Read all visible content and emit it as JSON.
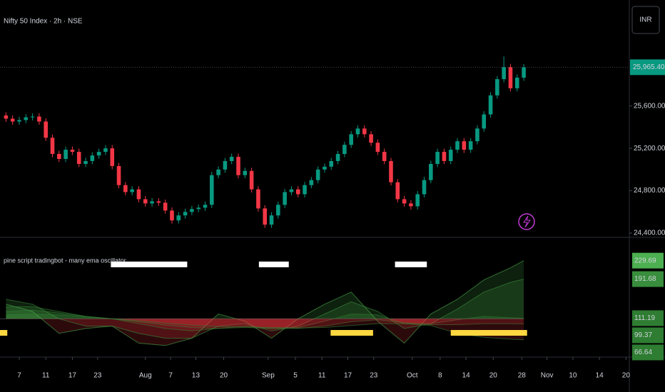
{
  "chart_data": [
    {
      "type": "candlestick",
      "title": "Nifty 50 Index · 2h · NSE",
      "currency": "INR",
      "x": [
        -2,
        -1,
        0,
        1,
        2,
        3,
        4,
        5,
        6,
        7,
        8,
        9,
        10,
        11,
        12,
        13,
        14,
        15,
        16,
        17,
        18,
        19,
        20,
        21,
        22,
        23,
        24,
        25,
        26,
        27,
        28,
        29,
        30,
        31,
        32,
        33,
        34,
        35,
        36,
        37,
        38,
        39,
        40,
        41,
        42,
        43,
        44,
        45,
        46,
        47,
        48,
        49,
        50,
        51,
        52,
        53,
        54,
        55,
        56,
        57,
        58,
        59,
        60,
        61,
        62,
        63,
        64,
        65,
        66,
        67,
        68,
        69,
        70,
        71,
        72,
        73,
        74,
        75,
        76
      ],
      "open": [
        25510,
        25480,
        25453,
        25467,
        25493,
        25500,
        25453,
        25300,
        25147,
        25100,
        25187,
        25167,
        25053,
        25080,
        25133,
        25167,
        25200,
        25033,
        24853,
        24787,
        24813,
        24720,
        24680,
        24700,
        24687,
        24613,
        24520,
        24567,
        24600,
        24627,
        24640,
        24667,
        24947,
        25000,
        25080,
        25120,
        24947,
        24987,
        24813,
        24633,
        24480,
        24567,
        24667,
        24787,
        24813,
        24767,
        24853,
        24900,
        25000,
        25027,
        25080,
        25147,
        25233,
        25333,
        25387,
        25333,
        25253,
        25167,
        25080,
        24880,
        24720,
        24680,
        24653,
        24767,
        24900,
        25053,
        25167,
        25080,
        25187,
        25267,
        25187,
        25267,
        25387,
        25520,
        25700,
        25853,
        25967,
        25767,
        25867
      ],
      "high": [
        25540,
        25510,
        25497,
        25523,
        25530,
        25530,
        25483,
        25330,
        25177,
        25217,
        25217,
        25197,
        25110,
        25163,
        25197,
        25230,
        25230,
        25063,
        24883,
        24843,
        24843,
        24750,
        24730,
        24730,
        24717,
        24643,
        24597,
        24630,
        24657,
        24670,
        24697,
        24977,
        25030,
        25110,
        25150,
        25150,
        25017,
        25017,
        24843,
        24663,
        24597,
        24697,
        24817,
        24843,
        24843,
        24883,
        24930,
        25030,
        25057,
        25110,
        25177,
        25263,
        25363,
        25417,
        25417,
        25363,
        25283,
        25197,
        25110,
        24910,
        24750,
        24710,
        24797,
        24930,
        25083,
        25197,
        25197,
        25217,
        25297,
        25297,
        25297,
        25417,
        25550,
        25730,
        25883,
        26067,
        25997,
        25897,
        25995
      ],
      "low": [
        25450,
        25423,
        25423,
        25437,
        25463,
        25423,
        25270,
        25117,
        25070,
        25070,
        25137,
        25023,
        25023,
        25050,
        25103,
        25137,
        25003,
        24823,
        24757,
        24757,
        24690,
        24650,
        24650,
        24657,
        24583,
        24490,
        24490,
        24537,
        24570,
        24597,
        24610,
        24637,
        24917,
        24970,
        25050,
        24917,
        24917,
        24783,
        24603,
        24450,
        24450,
        24537,
        24637,
        24757,
        24737,
        24737,
        24823,
        24870,
        24970,
        24997,
        25050,
        25117,
        25203,
        25303,
        25303,
        25223,
        25137,
        25050,
        24850,
        24690,
        24650,
        24623,
        24623,
        24737,
        24870,
        25023,
        25050,
        25050,
        25157,
        25157,
        25157,
        25237,
        25357,
        25490,
        25670,
        25823,
        25737,
        25737,
        25837
      ],
      "close": [
        25480,
        25453,
        25467,
        25493,
        25500,
        25453,
        25300,
        25147,
        25100,
        25187,
        25167,
        25053,
        25080,
        25133,
        25167,
        25200,
        25033,
        24853,
        24787,
        24813,
        24720,
        24680,
        24700,
        24687,
        24613,
        24520,
        24567,
        24600,
        24627,
        24640,
        24667,
        24947,
        25000,
        25080,
        25120,
        24947,
        24987,
        24813,
        24633,
        24480,
        24567,
        24667,
        24787,
        24813,
        24767,
        24853,
        24900,
        25000,
        25027,
        25080,
        25147,
        25233,
        25333,
        25387,
        25333,
        25253,
        25167,
        25080,
        24880,
        24720,
        24680,
        24653,
        24767,
        24900,
        25053,
        25167,
        25080,
        25187,
        25267,
        25187,
        25267,
        25387,
        25520,
        25700,
        25853,
        25967,
        25767,
        25867,
        25965.4
      ],
      "last_price_label": "25,965.40",
      "up_color": "#089981",
      "down_color": "#f23645",
      "xlim": [
        -2.9,
        91.9
      ],
      "ylim": [
        24360,
        26600
      ],
      "yticks": [
        {
          "value": 24400,
          "label": "24,400.00"
        },
        {
          "value": 24800,
          "label": "24,800.00"
        },
        {
          "value": 25200,
          "label": "25,200.00"
        },
        {
          "value": 25600,
          "label": "25,600.00"
        }
      ],
      "xticks": [
        {
          "value": 0,
          "label": "7"
        },
        {
          "value": 4,
          "label": "11"
        },
        {
          "value": 8,
          "label": "17"
        },
        {
          "value": 11.8,
          "label": "23"
        },
        {
          "value": 19,
          "label": "Aug"
        },
        {
          "value": 22.8,
          "label": "7"
        },
        {
          "value": 26.6,
          "label": "13"
        },
        {
          "value": 30.8,
          "label": "20"
        },
        {
          "value": 37.5,
          "label": "Sep"
        },
        {
          "value": 41.6,
          "label": "5"
        },
        {
          "value": 45.6,
          "label": "11"
        },
        {
          "value": 49.5,
          "label": "17"
        },
        {
          "value": 53.4,
          "label": "23"
        },
        {
          "value": 59.2,
          "label": "Oct"
        },
        {
          "value": 63.4,
          "label": "8"
        },
        {
          "value": 67.3,
          "label": "14"
        },
        {
          "value": 71.4,
          "label": "20"
        },
        {
          "value": 75.7,
          "label": "28"
        },
        {
          "value": 79.5,
          "label": "Nov"
        },
        {
          "value": 83.4,
          "label": "10"
        },
        {
          "value": 87.4,
          "label": "14"
        },
        {
          "value": 91.4,
          "label": "20"
        }
      ],
      "grid": false
    },
    {
      "type": "oscillator",
      "title": "pine script tradingbot - many ema oscillator",
      "x": [
        -2,
        2,
        6,
        10,
        14,
        18,
        22,
        26,
        30,
        34,
        38,
        42,
        46,
        50,
        54,
        58,
        62,
        66,
        70,
        74,
        76
      ],
      "baseline": 110,
      "xlim": [
        -2.9,
        91.9
      ],
      "ylim": [
        40,
        260
      ],
      "above_color": "#4caf50",
      "below_color": "#f23645",
      "series": [
        {
          "color": "#4caf50",
          "values": [
            140,
            125,
            80,
            90,
            95,
            60,
            55,
            70,
            120,
            105,
            70,
            110,
            140,
            165,
            105,
            60,
            120,
            150,
            190,
            215,
            229.69
          ]
        },
        {
          "color": "#388e3c",
          "values": [
            150,
            140,
            110,
            95,
            95,
            80,
            70,
            70,
            95,
            100,
            85,
            95,
            120,
            145,
            125,
            90,
            100,
            130,
            165,
            185,
            191.68
          ]
        },
        {
          "color": "#2e7d32",
          "values": [
            135,
            135,
            125,
            115,
            110,
            100,
            90,
            85,
            90,
            95,
            90,
            92,
            105,
            120,
            118,
            100,
            100,
            108,
            115,
            112,
            111.19
          ]
        },
        {
          "color": "#2e7d32",
          "values": [
            125,
            128,
            122,
            115,
            110,
            104,
            97,
            92,
            90,
            92,
            90,
            90,
            95,
            104,
            108,
            102,
            98,
            98,
            100,
            100,
            99.37
          ]
        },
        {
          "color": "#2e7d32",
          "values": [
            118,
            120,
            118,
            114,
            110,
            106,
            101,
            97,
            94,
            93,
            92,
            91,
            92,
            96,
            100,
            100,
            96,
            80,
            72,
            68,
            66.64
          ]
        }
      ],
      "upper_signals": [
        [
          13.8,
          25.3
        ],
        [
          36.1,
          40.6
        ],
        [
          56.6,
          61.4
        ]
      ],
      "upper_signal_color": "#ffffff",
      "lower_signals": [
        [
          -2.9,
          -1.8
        ],
        [
          46.9,
          53.3
        ],
        [
          65,
          76.5
        ]
      ],
      "lower_signal_color": "#ffd740"
    }
  ]
}
